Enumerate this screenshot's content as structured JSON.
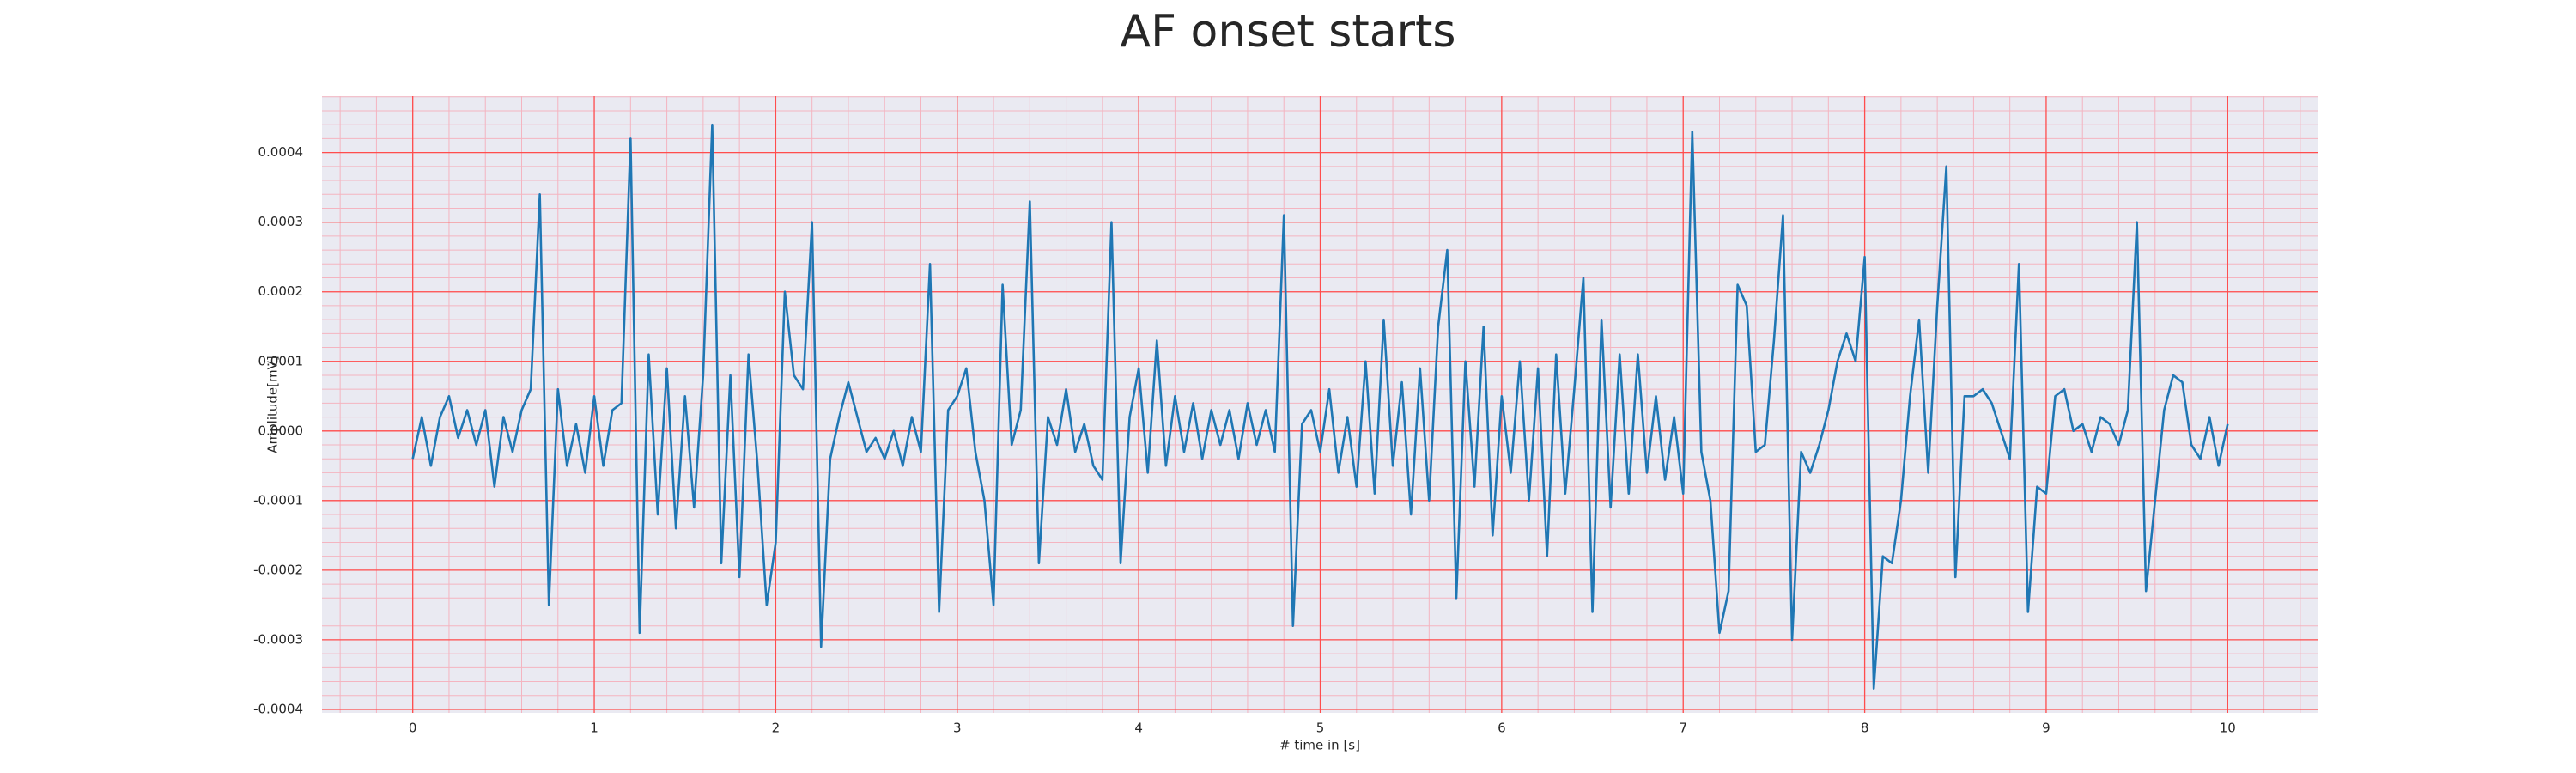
{
  "chart_data": {
    "type": "line",
    "title": "AF onset starts",
    "xlabel": "# time in [s]",
    "ylabel": "Amplitude[mV]",
    "color": "#1f77b4",
    "grid": true,
    "minor_divisions": 5,
    "xlim": [
      -0.5,
      10.5
    ],
    "ylim": [
      -0.000405,
      0.000481
    ],
    "xticks": [
      0,
      1,
      2,
      3,
      4,
      5,
      6,
      7,
      8,
      9,
      10
    ],
    "yticks": [
      -0.0004,
      -0.0003,
      -0.0002,
      -0.0001,
      {
        "value": 0,
        "label": "0.0000"
      },
      0.0001,
      0.0002,
      0.0003,
      0.0004
    ],
    "x": [
      0,
      0.05,
      0.1,
      0.15,
      0.2,
      0.25,
      0.3,
      0.35,
      0.4,
      0.45,
      0.5,
      0.55,
      0.6,
      0.65,
      0.7,
      0.75,
      0.8,
      0.85,
      0.9,
      0.95,
      1,
      1.05,
      1.1,
      1.15,
      1.2,
      1.25,
      1.3,
      1.35,
      1.4,
      1.45,
      1.5,
      1.55,
      1.6,
      1.65,
      1.7,
      1.75,
      1.8,
      1.85,
      1.9,
      1.95,
      2,
      2.05,
      2.1,
      2.15,
      2.2,
      2.25,
      2.3,
      2.35,
      2.4,
      2.45,
      2.5,
      2.55,
      2.6,
      2.65,
      2.7,
      2.75,
      2.8,
      2.85,
      2.9,
      2.95,
      3,
      3.05,
      3.1,
      3.15,
      3.2,
      3.25,
      3.3,
      3.35,
      3.4,
      3.45,
      3.5,
      3.55,
      3.6,
      3.65,
      3.7,
      3.75,
      3.8,
      3.85,
      3.9,
      3.95,
      4,
      4.05,
      4.1,
      4.15,
      4.2,
      4.25,
      4.3,
      4.35,
      4.4,
      4.45,
      4.5,
      4.55,
      4.6,
      4.65,
      4.7,
      4.75,
      4.8,
      4.85,
      4.9,
      4.95,
      5,
      5.05,
      5.1,
      5.15,
      5.2,
      5.25,
      5.3,
      5.35,
      5.4,
      5.45,
      5.5,
      5.55,
      5.6,
      5.65,
      5.7,
      5.75,
      5.8,
      5.85,
      5.9,
      5.95,
      6,
      6.05,
      6.1,
      6.15,
      6.2,
      6.25,
      6.3,
      6.35,
      6.4,
      6.45,
      6.5,
      6.55,
      6.6,
      6.65,
      6.7,
      6.75,
      6.8,
      6.85,
      6.9,
      6.95,
      7,
      7.05,
      7.1,
      7.15,
      7.2,
      7.25,
      7.3,
      7.35,
      7.4,
      7.45,
      7.5,
      7.55,
      7.6,
      7.65,
      7.7,
      7.75,
      7.8,
      7.85,
      7.9,
      7.95,
      8,
      8.05,
      8.1,
      8.15,
      8.2,
      8.25,
      8.3,
      8.35,
      8.4,
      8.45,
      8.5,
      8.55,
      8.6,
      8.65,
      8.7,
      8.75,
      8.8,
      8.85,
      8.9,
      8.95,
      9,
      9.05,
      9.1,
      9.15,
      9.2,
      9.25,
      9.3,
      9.35,
      9.4,
      9.45,
      9.5,
      9.55,
      9.6,
      9.65,
      9.7,
      9.75,
      9.8,
      9.85,
      9.9,
      9.95,
      10
    ],
    "values": [
      -4e-05,
      2e-05,
      -5e-05,
      2e-05,
      5e-05,
      -1e-05,
      3e-05,
      -2e-05,
      3e-05,
      -8e-05,
      2e-05,
      -3e-05,
      3e-05,
      6e-05,
      0.00034,
      -0.00025,
      6e-05,
      -5e-05,
      1e-05,
      -6e-05,
      5e-05,
      -5e-05,
      3e-05,
      4e-05,
      0.00042,
      -0.00029,
      0.00011,
      -0.00012,
      9e-05,
      -0.00014,
      5e-05,
      -0.00011,
      8e-05,
      0.00044,
      -0.00019,
      8e-05,
      -0.00021,
      0.00011,
      -5e-05,
      -0.00025,
      -0.00016,
      0.0002,
      8e-05,
      6e-05,
      0.0003,
      -0.00031,
      -4e-05,
      2e-05,
      7e-05,
      2e-05,
      -3e-05,
      -1e-05,
      -4e-05,
      0,
      -5e-05,
      2e-05,
      -3e-05,
      0.00024,
      -0.00026,
      3e-05,
      5e-05,
      9e-05,
      -3e-05,
      -0.0001,
      -0.00025,
      0.00021,
      -2e-05,
      3e-05,
      0.00033,
      -0.00019,
      2e-05,
      -2e-05,
      6e-05,
      -3e-05,
      1e-05,
      -5e-05,
      -7e-05,
      0.0003,
      -0.00019,
      2e-05,
      9e-05,
      -6e-05,
      0.00013,
      -5e-05,
      5e-05,
      -3e-05,
      4e-05,
      -4e-05,
      3e-05,
      -2e-05,
      3e-05,
      -4e-05,
      4e-05,
      -2e-05,
      3e-05,
      -3e-05,
      0.00031,
      -0.00028,
      1e-05,
      3e-05,
      -3e-05,
      6e-05,
      -6e-05,
      2e-05,
      -8e-05,
      0.0001,
      -9e-05,
      0.00016,
      -5e-05,
      7e-05,
      -0.00012,
      9e-05,
      -0.0001,
      0.00015,
      0.00026,
      -0.00024,
      0.0001,
      -8e-05,
      0.00015,
      -0.00015,
      5e-05,
      -6e-05,
      0.0001,
      -0.0001,
      9e-05,
      -0.00018,
      0.00011,
      -9e-05,
      6e-05,
      0.00022,
      -0.00026,
      0.00016,
      -0.00011,
      0.00011,
      -9e-05,
      0.00011,
      -6e-05,
      5e-05,
      -7e-05,
      2e-05,
      -9e-05,
      0.00043,
      -3e-05,
      -0.0001,
      -0.00029,
      -0.00023,
      0.00021,
      0.00018,
      -3e-05,
      -2e-05,
      0.00013,
      0.00031,
      -0.0003,
      -3e-05,
      -6e-05,
      -2e-05,
      3e-05,
      0.0001,
      0.00014,
      0.0001,
      0.00025,
      -0.00037,
      -0.00018,
      -0.00019,
      -0.0001,
      5e-05,
      0.00016,
      -6e-05,
      0.00018,
      0.00038,
      -0.00021,
      5e-05,
      5e-05,
      6e-05,
      4e-05,
      0,
      -4e-05,
      0.00024,
      -0.00026,
      -8e-05,
      -9e-05,
      5e-05,
      6e-05,
      0,
      1e-05,
      -3e-05,
      2e-05,
      1e-05,
      -2e-05,
      3e-05,
      0.0003,
      -0.00023,
      -0.0001,
      3e-05,
      8e-05,
      7e-05,
      -2e-05,
      -4e-05,
      2e-05,
      -5e-05,
      1e-05
    ]
  }
}
